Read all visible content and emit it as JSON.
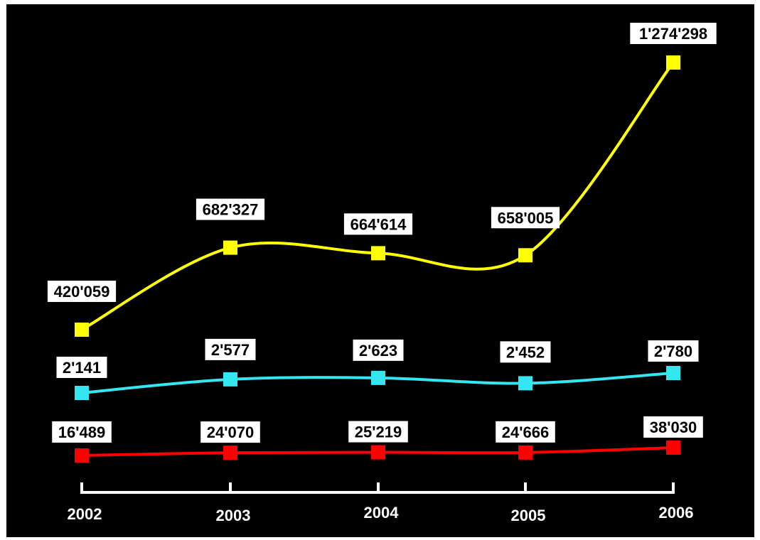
{
  "chart_data": {
    "type": "line",
    "title": "",
    "xlabel": "",
    "ylabel": "",
    "grid": false,
    "categories": [
      "2002",
      "2003",
      "2004",
      "2005",
      "2006"
    ],
    "series": [
      {
        "color": "#ffff00",
        "values": [
          420059,
          682327,
          664614,
          658005,
          1274298
        ],
        "labels": [
          "420'059",
          "682'327",
          "664'614",
          "658'005",
          "1'274'298"
        ]
      },
      {
        "color": "#33e6f0",
        "values": [
          2141,
          2577,
          2623,
          2452,
          2780
        ],
        "labels": [
          "2'141",
          "2'577",
          "2'623",
          "2'452",
          "2'780"
        ]
      },
      {
        "color": "#ff0000",
        "values": [
          16489,
          24070,
          25219,
          24666,
          38030
        ],
        "labels": [
          "16'489",
          "24'070",
          "25'219",
          "24'666",
          "38'030"
        ]
      }
    ]
  }
}
